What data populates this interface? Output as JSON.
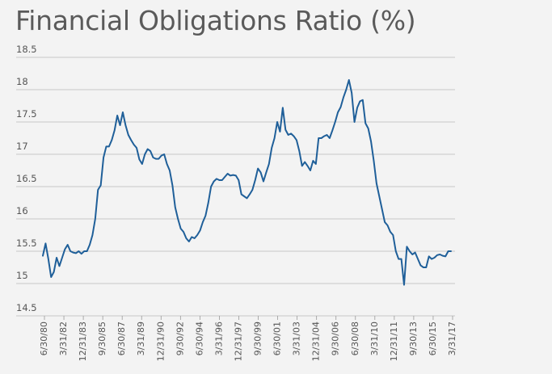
{
  "chart_data": {
    "type": "line",
    "title": "Financial Obligations Ratio (%)",
    "xlabel": "",
    "ylabel": "",
    "ylim": [
      14.5,
      18.5
    ],
    "yticks": [
      14.5,
      15,
      15.5,
      16,
      16.5,
      17,
      17.5,
      18,
      18.5
    ],
    "ytick_labels": [
      "14.5",
      "15",
      "15.5",
      "16",
      "16.5",
      "17",
      "17.5",
      "18",
      "18.5"
    ],
    "xtick_labels": [
      "6/30/80",
      "3/31/82",
      "12/31/83",
      "9/30/85",
      "6/30/87",
      "3/31/89",
      "12/31/90",
      "9/30/92",
      "6/30/94",
      "3/31/96",
      "12/31/97",
      "9/30/99",
      "6/30/01",
      "3/31/03",
      "12/31/04",
      "9/30/06",
      "6/30/08",
      "3/31/10",
      "12/31/11",
      "9/30/13",
      "6/30/15",
      "3/31/17"
    ],
    "grid": true,
    "line_color": "#1f5f99",
    "series": [
      {
        "values": [
          15.43,
          15.62,
          15.38,
          15.1,
          15.18,
          15.4,
          15.27,
          15.4,
          15.53,
          15.6,
          15.5,
          15.48,
          15.47,
          15.5,
          15.46,
          15.5,
          15.5,
          15.6,
          15.75,
          16.0,
          16.45,
          16.52,
          16.95,
          17.12,
          17.12,
          17.22,
          17.37,
          17.6,
          17.45,
          17.65,
          17.45,
          17.3,
          17.22,
          17.15,
          17.1,
          16.92,
          16.85,
          17.0,
          17.08,
          17.05,
          16.95,
          16.93,
          16.93,
          16.98,
          17.0,
          16.85,
          16.75,
          16.52,
          16.18,
          16.0,
          15.85,
          15.8,
          15.7,
          15.65,
          15.72,
          15.7,
          15.75,
          15.82,
          15.95,
          16.05,
          16.25,
          16.5,
          16.58,
          16.62,
          16.6,
          16.6,
          16.65,
          16.7,
          16.67,
          16.68,
          16.67,
          16.6,
          16.38,
          16.35,
          16.32,
          16.38,
          16.45,
          16.6,
          16.78,
          16.72,
          16.58,
          16.72,
          16.85,
          17.1,
          17.25,
          17.5,
          17.35,
          17.72,
          17.38,
          17.3,
          17.32,
          17.28,
          17.22,
          17.05,
          16.82,
          16.88,
          16.82,
          16.75,
          16.9,
          16.85,
          17.25,
          17.25,
          17.28,
          17.3,
          17.25,
          17.37,
          17.5,
          17.65,
          17.73,
          17.88,
          18.0,
          18.15,
          17.95,
          17.5,
          17.72,
          17.82,
          17.84,
          17.48,
          17.4,
          17.2,
          16.9,
          16.55,
          16.35,
          16.15,
          15.95,
          15.9,
          15.8,
          15.75,
          15.5,
          15.38,
          15.38,
          14.98,
          15.57,
          15.5,
          15.45,
          15.48,
          15.38,
          15.28,
          15.25,
          15.25,
          15.42,
          15.38,
          15.4,
          15.44,
          15.45,
          15.43,
          15.42,
          15.5,
          15.5
        ]
      }
    ]
  }
}
